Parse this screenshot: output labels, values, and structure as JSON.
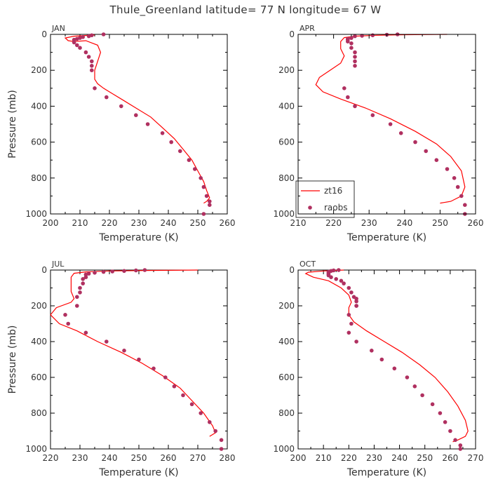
{
  "title": "Thule_Greenland  latitude= 77 N longitude= 67 W",
  "colors": {
    "model": "#ff0000",
    "obs": "#b03060"
  },
  "legend": {
    "model_label": "zt16",
    "obs_label": "raobs",
    "placement": "bottom-left of APR panel"
  },
  "chart_data": [
    {
      "type": "line",
      "panel": "JAN",
      "xlabel": "Temperature (K)",
      "ylabel": "Pressure (mb)",
      "xlim": [
        200,
        260
      ],
      "ylim": [
        1000,
        0
      ],
      "xticks": [
        200,
        210,
        220,
        230,
        240,
        250,
        260
      ],
      "yticks": [
        0,
        200,
        400,
        600,
        800,
        1000
      ],
      "series": [
        {
          "name": "zt16",
          "style": "line",
          "x": [
            215,
            208,
            205,
            206,
            208,
            212,
            216,
            217,
            216,
            215,
            215,
            216,
            218,
            221,
            225,
            229,
            234,
            238,
            242,
            245,
            248,
            250,
            252,
            253,
            254,
            253,
            252
          ],
          "y": [
            3,
            10,
            20,
            35,
            40,
            35,
            60,
            100,
            150,
            200,
            250,
            275,
            300,
            330,
            370,
            410,
            460,
            520,
            580,
            640,
            700,
            760,
            820,
            870,
            910,
            930,
            940
          ]
        },
        {
          "name": "raobs",
          "style": "points",
          "x": [
            218,
            214,
            213,
            211,
            210,
            209,
            208,
            208,
            209,
            210,
            212,
            213,
            214,
            214,
            214,
            215,
            219,
            224,
            229,
            233,
            238,
            241,
            244,
            247,
            249,
            251,
            252,
            253,
            254,
            254,
            252
          ],
          "y": [
            0,
            5,
            10,
            15,
            20,
            25,
            30,
            45,
            60,
            75,
            100,
            125,
            150,
            175,
            200,
            300,
            350,
            400,
            450,
            500,
            550,
            600,
            650,
            700,
            750,
            800,
            850,
            900,
            950,
            930,
            1000
          ]
        }
      ]
    },
    {
      "type": "line",
      "panel": "APR",
      "xlabel": "Temperature (K)",
      "ylabel": "",
      "xlim": [
        210,
        260
      ],
      "ylim": [
        1000,
        0
      ],
      "xticks": [
        210,
        220,
        230,
        240,
        250,
        260
      ],
      "yticks": [
        0,
        200,
        400,
        600,
        800,
        1000
      ],
      "series": [
        {
          "name": "zt16",
          "style": "line",
          "x": [
            252,
            240,
            232,
            226,
            223,
            222,
            222,
            223,
            222,
            219,
            216,
            215,
            217,
            222,
            229,
            236,
            243,
            249,
            253,
            256,
            257,
            256,
            253,
            250
          ],
          "y": [
            0,
            2,
            5,
            10,
            18,
            40,
            80,
            120,
            160,
            200,
            240,
            280,
            320,
            360,
            410,
            470,
            540,
            610,
            680,
            760,
            850,
            900,
            930,
            940
          ]
        },
        {
          "name": "raobs",
          "style": "points",
          "x": [
            238,
            235,
            231,
            228,
            226,
            225,
            224,
            224,
            224,
            225,
            225,
            226,
            226,
            226,
            226,
            223,
            224,
            226,
            231,
            236,
            239,
            243,
            246,
            249,
            252,
            254,
            255,
            256,
            257,
            257
          ],
          "y": [
            0,
            2,
            5,
            8,
            10,
            20,
            25,
            30,
            40,
            50,
            75,
            100,
            125,
            150,
            175,
            300,
            350,
            400,
            450,
            500,
            550,
            600,
            650,
            700,
            750,
            800,
            850,
            900,
            950,
            1000
          ]
        }
      ]
    },
    {
      "type": "line",
      "panel": "JUL",
      "xlabel": "Temperature (K)",
      "ylabel": "Pressure (mb)",
      "xlim": [
        220,
        280
      ],
      "ylim": [
        1000,
        0
      ],
      "xticks": [
        220,
        230,
        240,
        250,
        260,
        270,
        280
      ],
      "yticks": [
        0,
        200,
        400,
        600,
        800,
        1000
      ],
      "series": [
        {
          "name": "zt16",
          "style": "line",
          "x": [
            270,
            255,
            240,
            232,
            228,
            227,
            227,
            227,
            228,
            227,
            222,
            220,
            223,
            229,
            236,
            244,
            251,
            258,
            264,
            268,
            272,
            275,
            276,
            274
          ],
          "y": [
            0,
            2,
            5,
            10,
            18,
            40,
            80,
            120,
            160,
            180,
            210,
            250,
            300,
            340,
            400,
            460,
            520,
            590,
            660,
            730,
            800,
            870,
            910,
            930
          ]
        },
        {
          "name": "raobs",
          "style": "points",
          "x": [
            252,
            249,
            245,
            241,
            238,
            235,
            233,
            232,
            232,
            231,
            231,
            230,
            230,
            229,
            229,
            225,
            226,
            232,
            239,
            245,
            250,
            255,
            259,
            262,
            265,
            268,
            271,
            274,
            276,
            278,
            278
          ],
          "y": [
            0,
            2,
            5,
            8,
            10,
            15,
            20,
            25,
            40,
            50,
            75,
            100,
            125,
            150,
            200,
            250,
            300,
            350,
            400,
            450,
            500,
            550,
            600,
            650,
            700,
            750,
            800,
            850,
            900,
            950,
            1000
          ]
        }
      ]
    },
    {
      "type": "line",
      "panel": "OCT",
      "xlabel": "Temperature (K)",
      "ylabel": "",
      "xlim": [
        200,
        270
      ],
      "ylim": [
        1000,
        0
      ],
      "xticks": [
        200,
        210,
        220,
        230,
        240,
        250,
        260,
        270
      ],
      "yticks": [
        0,
        200,
        400,
        600,
        800,
        1000
      ],
      "series": [
        {
          "name": "zt16",
          "style": "line",
          "x": [
            218,
            210,
            204,
            203,
            206,
            212,
            217,
            220,
            221,
            220,
            220,
            222,
            227,
            234,
            241,
            248,
            254,
            259,
            263,
            266,
            267,
            266,
            263,
            261
          ],
          "y": [
            0,
            5,
            12,
            20,
            40,
            60,
            100,
            140,
            180,
            210,
            250,
            290,
            340,
            400,
            460,
            530,
            600,
            680,
            760,
            840,
            900,
            930,
            950,
            960
          ]
        },
        {
          "name": "raobs",
          "style": "points",
          "x": [
            216,
            214,
            213,
            212,
            212,
            212,
            212,
            212,
            213,
            215,
            217,
            218,
            220,
            221,
            222,
            223,
            223,
            223,
            223,
            220,
            221,
            220,
            223,
            229,
            233,
            238,
            243,
            246,
            249,
            253,
            256,
            258,
            260,
            262,
            264,
            264
          ],
          "y": [
            0,
            2,
            5,
            10,
            15,
            20,
            25,
            30,
            40,
            50,
            60,
            75,
            100,
            125,
            150,
            160,
            175,
            200,
            200,
            250,
            300,
            350,
            400,
            450,
            500,
            550,
            600,
            650,
            700,
            750,
            800,
            850,
            900,
            950,
            980,
            1000
          ]
        }
      ]
    }
  ]
}
